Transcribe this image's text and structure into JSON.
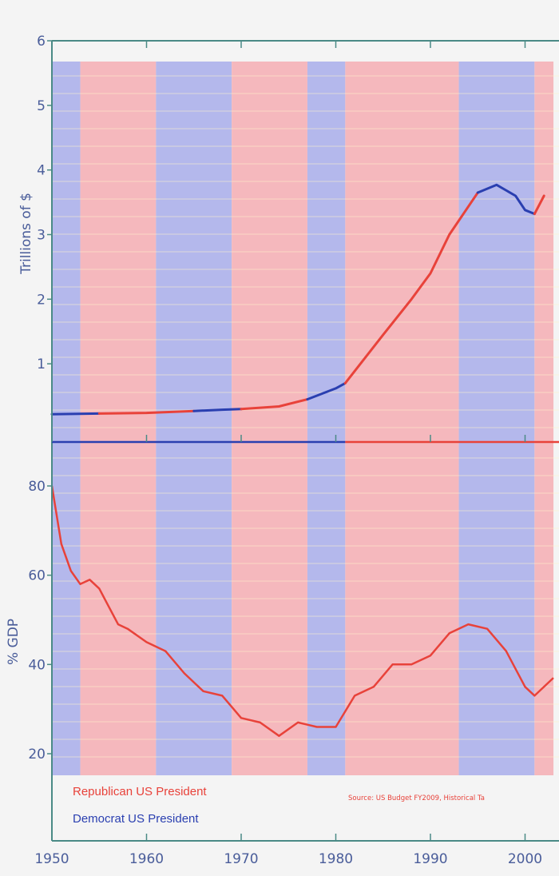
{
  "chart_data": [
    {
      "type": "line",
      "panel": "top",
      "ylabel": "Trillions of $",
      "ylim": [
        0,
        6
      ],
      "yticks": [
        1,
        2,
        3,
        4,
        5,
        6
      ],
      "x": [
        1950,
        1955,
        1960,
        1965,
        1968,
        1970,
        1974,
        1977,
        1980,
        1981,
        1985,
        1988,
        1990,
        1992,
        1995,
        1997,
        1999,
        2000,
        2001,
        2002
      ],
      "values": [
        0.22,
        0.23,
        0.24,
        0.27,
        0.29,
        0.3,
        0.34,
        0.45,
        0.62,
        0.7,
        1.45,
        2.0,
        2.4,
        3.0,
        3.65,
        3.77,
        3.6,
        3.38,
        3.32,
        3.6
      ]
    },
    {
      "type": "line",
      "panel": "bottom",
      "ylabel": "% GDP",
      "ylim": [
        10,
        82
      ],
      "yticks": [
        20,
        40,
        60,
        80
      ],
      "ytick_labels": [
        "20",
        "40",
        "60",
        "80"
      ],
      "x": [
        1950,
        1951,
        1952,
        1953,
        1954,
        1955,
        1956,
        1957,
        1958,
        1960,
        1962,
        1964,
        1966,
        1968,
        1970,
        1972,
        1974,
        1976,
        1978,
        1980,
        1982,
        1984,
        1986,
        1988,
        1990,
        1992,
        1994,
        1996,
        1998,
        2000,
        2001,
        2003
      ],
      "values": [
        80,
        67,
        61,
        58,
        59,
        57,
        53,
        49,
        48,
        45,
        43,
        38,
        34,
        33,
        28,
        27,
        24,
        27,
        26,
        26,
        33,
        35,
        40,
        40,
        42,
        47,
        49,
        48,
        43,
        35,
        33,
        37
      ]
    }
  ],
  "x_axis": {
    "xlim": [
      1950,
      2003
    ],
    "ticks": [
      1950,
      1960,
      1970,
      1980,
      1990,
      2000
    ],
    "tick_labels": [
      "1950",
      "1960",
      "1970",
      "1980",
      "1990",
      "2000"
    ]
  },
  "presidency_bands": [
    {
      "party": "democrat",
      "start": 1950,
      "end": 1953
    },
    {
      "party": "republican",
      "start": 1953,
      "end": 1961
    },
    {
      "party": "democrat",
      "start": 1961,
      "end": 1969
    },
    {
      "party": "republican",
      "start": 1969,
      "end": 1977
    },
    {
      "party": "democrat",
      "start": 1977,
      "end": 1981
    },
    {
      "party": "republican",
      "start": 1981,
      "end": 1993
    },
    {
      "party": "democrat",
      "start": 1993,
      "end": 2001
    },
    {
      "party": "republican",
      "start": 2001,
      "end": 2003
    }
  ],
  "legend": {
    "republican_label": "Republican US President",
    "democrat_label": "Democrat US President"
  },
  "source": "Source: US Budget FY2009, Historical Ta",
  "colors": {
    "republican": "#f5b8bd",
    "democrat": "#b4b8ec",
    "republican_line": "#e8423a",
    "democrat_line": "#2a3fb0",
    "axis": "#4a8a86"
  }
}
